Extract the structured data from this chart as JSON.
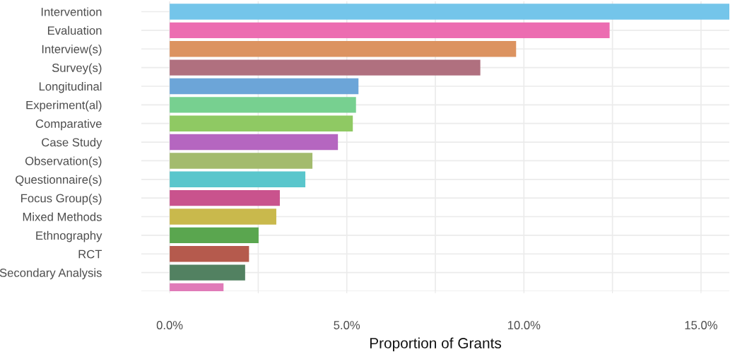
{
  "chart_data": {
    "type": "bar",
    "orientation": "horizontal",
    "xlabel": "Proportion of Grants",
    "categories": [
      "Intervention",
      "Evaluation",
      "Interview(s)",
      "Survey(s)",
      "Longitudinal",
      "Experiment(al)",
      "Comparative",
      "Case Study",
      "Observation(s)",
      "Questionnaire(s)",
      "Focus Group(s)",
      "Mixed Methods",
      "Ethnography",
      "RCT",
      "Secondary Analysis",
      null
    ],
    "values": [
      15.8,
      12.42,
      9.78,
      8.77,
      5.33,
      5.26,
      5.17,
      4.75,
      4.03,
      3.83,
      3.11,
      3.01,
      2.51,
      2.24,
      2.13,
      1.52
    ],
    "colors": [
      "#74c5ea",
      "#ec6db1",
      "#dc9360",
      "#b0707f",
      "#6ca5d8",
      "#77d090",
      "#8fc963",
      "#b566c0",
      "#a3bb6e",
      "#5ac6cc",
      "#c9538d",
      "#c9b94c",
      "#5aa64f",
      "#b55a4d",
      "#528161",
      "#e07bb8"
    ],
    "xlim": [
      -0.8,
      15.8
    ],
    "xticks": [
      {
        "value": 0,
        "label": "0.0%"
      },
      {
        "value": 2.5,
        "label": null
      },
      {
        "value": 5,
        "label": "5.0%"
      },
      {
        "value": 7.5,
        "label": null
      },
      {
        "value": 10,
        "label": "10.0%"
      },
      {
        "value": 12.5,
        "label": null
      },
      {
        "value": 15,
        "label": "15.0%"
      }
    ],
    "grid": true
  }
}
